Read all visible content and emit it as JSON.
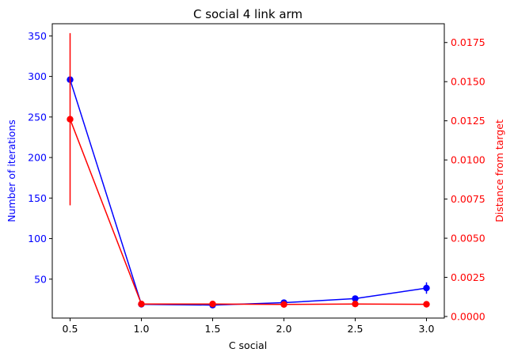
{
  "chart_data": {
    "type": "line",
    "title": "C social 4 link arm",
    "xlabel": "C social",
    "ylabel_left": "Number of iterations",
    "ylabel_right": "Distance from target",
    "x": [
      0.5,
      1.0,
      1.5,
      2.0,
      2.5,
      3.0
    ],
    "x_ticks": [
      "0.5",
      "1.0",
      "1.5",
      "2.0",
      "2.5",
      "3.0"
    ],
    "xlim": [
      0.375,
      3.125
    ],
    "left_axis": {
      "ylim": [
        2,
        365
      ],
      "ticks": [
        "50",
        "100",
        "150",
        "200",
        "250",
        "300",
        "350"
      ],
      "color": "#0000ff"
    },
    "right_axis": {
      "ylim": [
        -0.0001,
        0.0187
      ],
      "ticks": [
        "0.0000",
        "0.0025",
        "0.0050",
        "0.0075",
        "0.0100",
        "0.0125",
        "0.0150",
        "0.0175"
      ],
      "color": "#ff0000"
    },
    "series": [
      {
        "axis": "left",
        "color": "#0000ff",
        "values": [
          296,
          19,
          18,
          21,
          26,
          39
        ],
        "errors": [
          0,
          0,
          0,
          0,
          0,
          7
        ]
      },
      {
        "axis": "right",
        "color": "#ff0000",
        "values": [
          0.0126,
          0.0008,
          0.0008,
          0.00077,
          0.0008,
          0.00078
        ],
        "errors": [
          0.0055,
          0,
          0,
          0,
          0,
          0
        ]
      }
    ],
    "grid": false
  }
}
